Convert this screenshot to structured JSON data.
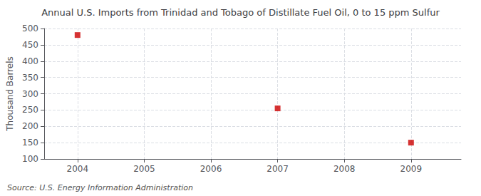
{
  "chart_data": {
    "type": "scatter",
    "title": "Annual U.S. Imports from Trinidad and Tobago of Distillate Fuel Oil, 0 to 15 ppm Sulfur",
    "ylabel": "Thousand Barrels",
    "source": "Source: U.S. Energy Information Administration",
    "x": [
      2004,
      2007,
      2009
    ],
    "values": [
      480,
      255,
      150
    ],
    "color": "#cc0000",
    "marker": "square",
    "xlim": [
      2003.5,
      2009.75
    ],
    "ylim": [
      100,
      500
    ],
    "xticks": [
      2004,
      2005,
      2006,
      2007,
      2008,
      2009
    ],
    "yticks": [
      100,
      150,
      200,
      250,
      300,
      350,
      400,
      450,
      500
    ],
    "grid": true
  }
}
